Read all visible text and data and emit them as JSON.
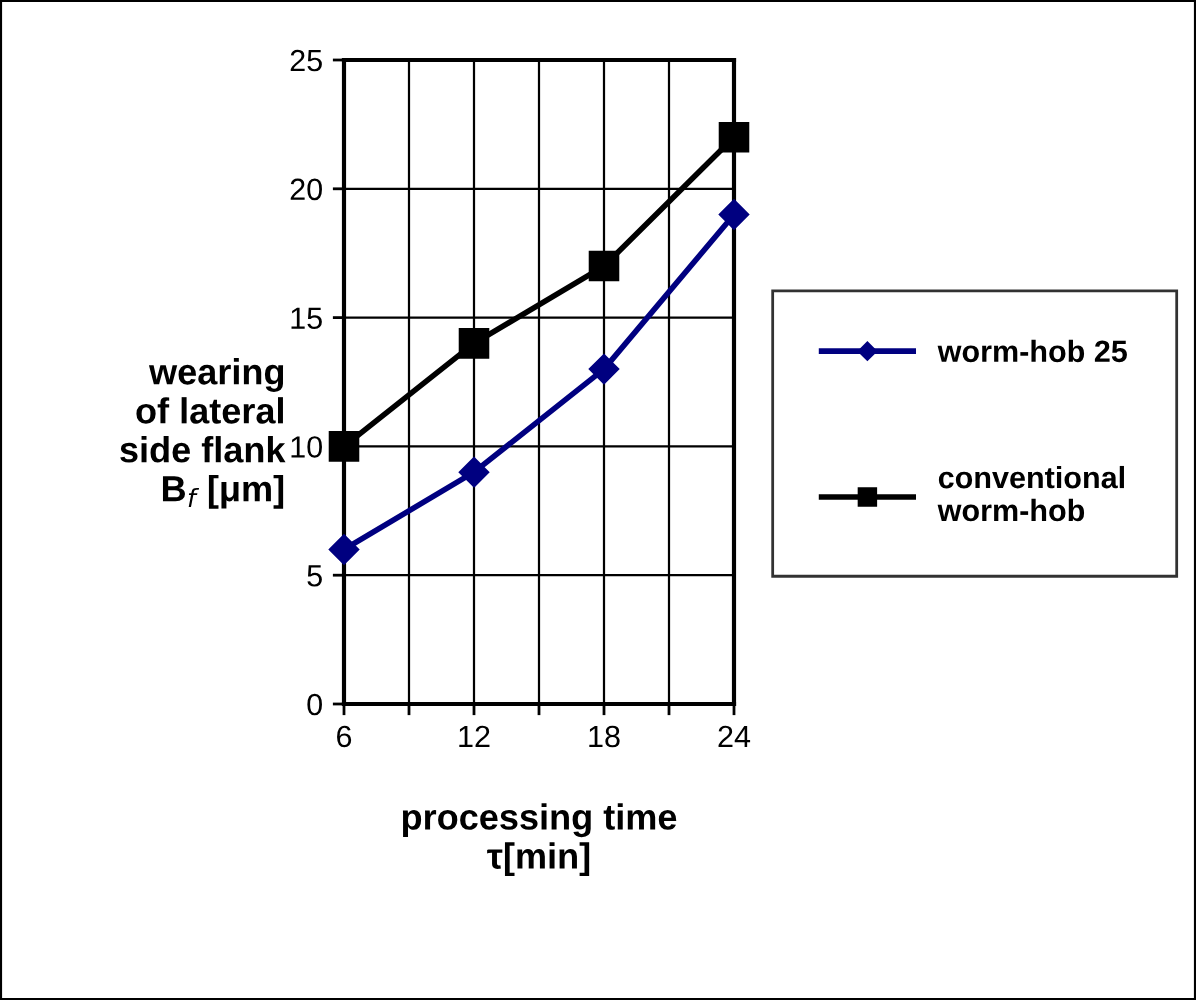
{
  "chart_data": {
    "type": "line",
    "xlabel": "processing time\nτ[min]",
    "ylabel": "wearing\nof lateral\nside flank\nB$_{f}$ [μm]",
    "x": [
      6,
      12,
      18,
      24
    ],
    "series": [
      {
        "name": "worm-hob 25",
        "color": "#000080",
        "marker": "diamond",
        "values": [
          6,
          9,
          13,
          19
        ]
      },
      {
        "name": "conventional\nworm-hob",
        "color": "#000000",
        "marker": "square",
        "values": [
          10,
          14,
          17,
          22
        ]
      }
    ],
    "xlim": [
      6,
      24
    ],
    "xticks": [
      6,
      {
        "value": 9,
        "label": null
      },
      12,
      {
        "value": 15,
        "label": null
      },
      18,
      {
        "value": 21,
        "label": null
      },
      24
    ],
    "ylim": [
      0,
      25
    ],
    "yticks": [
      0,
      5,
      10,
      15,
      20,
      25
    ],
    "grid": true,
    "legend": "right",
    "line_style": "solid"
  }
}
